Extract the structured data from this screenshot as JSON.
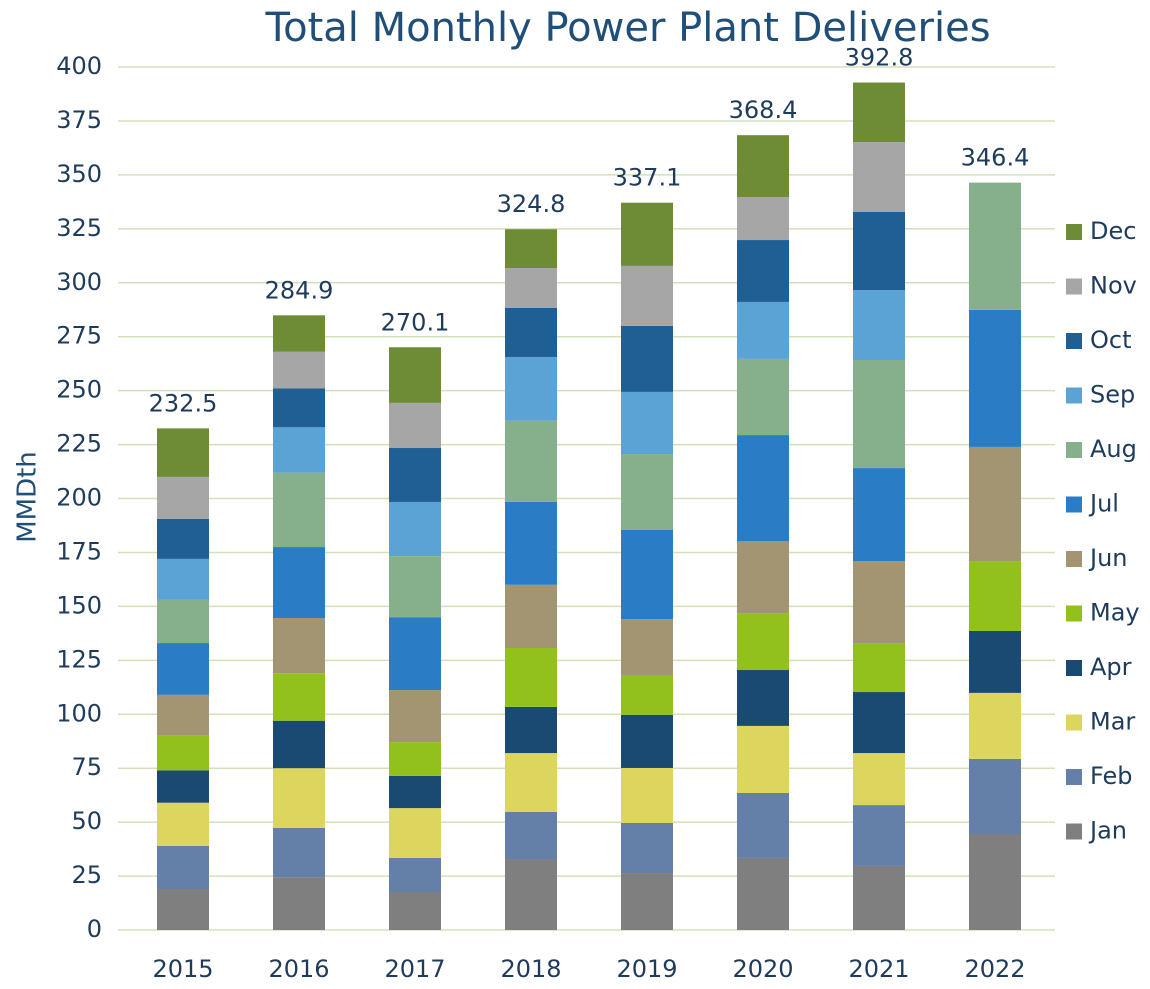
{
  "chart_data": {
    "type": "stacked_bar",
    "title": "Total Monthly Power Plant Deliveries",
    "y_label": "MMDth",
    "categories": [
      "2015",
      "2016",
      "2017",
      "2018",
      "2019",
      "2020",
      "2021",
      "2022"
    ],
    "series": [
      {
        "name": "Jan",
        "color": "#7f7f7f",
        "values": [
          19,
          24.5,
          17.6,
          32.9,
          26.4,
          33.4,
          29.7,
          44.5
        ]
      },
      {
        "name": "Feb",
        "color": "#6480a8",
        "values": [
          20,
          22.8,
          15.8,
          21.8,
          23.2,
          30.1,
          28.2,
          34.8
        ]
      },
      {
        "name": "Mar",
        "color": "#dcd65e",
        "values": [
          20,
          27.7,
          23.1,
          27.3,
          25.5,
          31.1,
          24.1,
          30.6
        ]
      },
      {
        "name": "Apr",
        "color": "#1a4a72",
        "values": [
          15,
          22,
          14.9,
          21.4,
          24.6,
          25.9,
          28.3,
          28.7
        ]
      },
      {
        "name": "May",
        "color": "#92c11d",
        "values": [
          16,
          22,
          15.7,
          27.3,
          18.5,
          26.4,
          22.7,
          32.4
        ]
      },
      {
        "name": "Jun",
        "color": "#a39571",
        "values": [
          19,
          25.6,
          24.1,
          29.3,
          25.9,
          33.4,
          38,
          52.9
        ]
      },
      {
        "name": "Jul",
        "color": "#2a7dc4",
        "values": [
          24,
          32.9,
          33.8,
          38.4,
          41.3,
          49.1,
          43.1,
          63.5
        ]
      },
      {
        "name": "Aug",
        "color": "#86b08b",
        "values": [
          20,
          34.5,
          28.3,
          37.6,
          35.2,
          35.3,
          50.1,
          59
        ]
      },
      {
        "name": "Sep",
        "color": "#5ba3d4",
        "values": [
          19,
          21,
          25.1,
          29.6,
          28.8,
          26.4,
          32.4,
          null
        ]
      },
      {
        "name": "Oct",
        "color": "#1f5f94",
        "values": [
          18.5,
          18,
          25,
          22.7,
          30.6,
          28.7,
          36.2,
          null
        ]
      },
      {
        "name": "Nov",
        "color": "#a6a6a6",
        "values": [
          19.5,
          17,
          20.9,
          18.5,
          27.8,
          19.9,
          32.4,
          null
        ]
      },
      {
        "name": "Dec",
        "color": "#6e8c36",
        "values": [
          22.5,
          16.9,
          25.8,
          18,
          29.3,
          28.7,
          27.6,
          null
        ]
      }
    ],
    "totals": [
      232.5,
      284.9,
      270.1,
      324.8,
      337.1,
      368.4,
      392.8,
      346.4
    ],
    "ylim": [
      0,
      400
    ],
    "yticks": [
      0,
      25,
      50,
      75,
      100,
      125,
      150,
      175,
      200,
      225,
      250,
      275,
      300,
      325,
      350,
      375,
      400
    ],
    "grid": true,
    "legend": "right"
  }
}
